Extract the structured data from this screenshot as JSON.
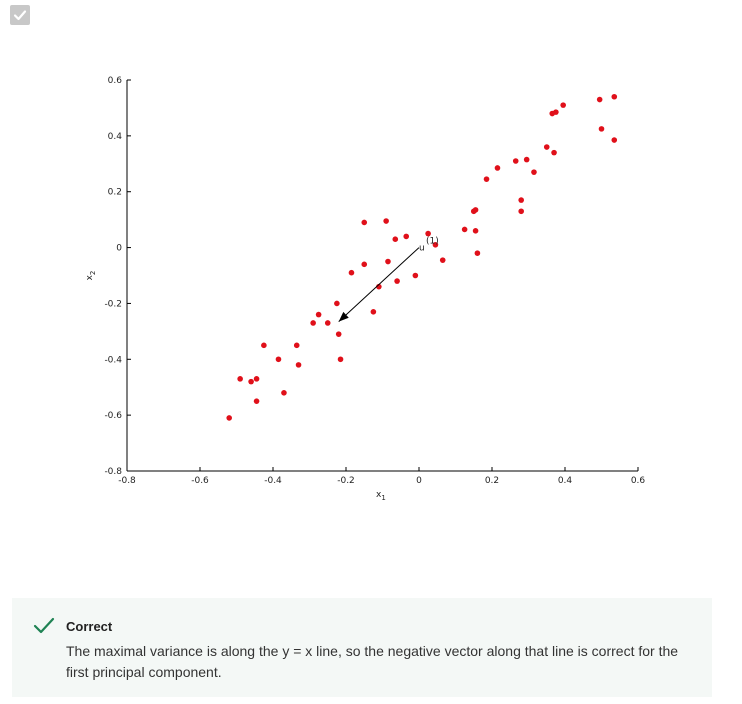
{
  "checkbox": {
    "checked": true,
    "icon": "checkmark-icon"
  },
  "chart_data": {
    "type": "scatter",
    "xlabel": "x1",
    "ylabel": "x2",
    "xlim": [
      -0.8,
      0.6
    ],
    "ylim": [
      -0.8,
      0.6
    ],
    "xticks": [
      "-0.8",
      "-0.6",
      "-0.4",
      "-0.2",
      "0",
      "0.2",
      "0.4",
      "0.6"
    ],
    "yticks": [
      "-0.8",
      "-0.6",
      "-0.4",
      "-0.2",
      "0",
      "0.2",
      "0.4",
      "0.6"
    ],
    "grid": false,
    "point_color": "#e0101a",
    "points": [
      [
        -0.52,
        -0.61
      ],
      [
        -0.49,
        -0.47
      ],
      [
        -0.46,
        -0.48
      ],
      [
        -0.445,
        -0.47
      ],
      [
        -0.445,
        -0.55
      ],
      [
        -0.425,
        -0.35
      ],
      [
        -0.385,
        -0.4
      ],
      [
        -0.37,
        -0.52
      ],
      [
        -0.335,
        -0.35
      ],
      [
        -0.33,
        -0.42
      ],
      [
        -0.29,
        -0.27
      ],
      [
        -0.275,
        -0.24
      ],
      [
        -0.25,
        -0.27
      ],
      [
        -0.225,
        -0.2
      ],
      [
        -0.22,
        -0.31
      ],
      [
        -0.215,
        -0.4
      ],
      [
        -0.185,
        -0.09
      ],
      [
        -0.15,
        -0.06
      ],
      [
        -0.15,
        0.09
      ],
      [
        -0.125,
        -0.23
      ],
      [
        -0.11,
        -0.14
      ],
      [
        -0.09,
        0.095
      ],
      [
        -0.085,
        -0.05
      ],
      [
        -0.065,
        0.03
      ],
      [
        -0.06,
        -0.12
      ],
      [
        -0.035,
        0.04
      ],
      [
        -0.01,
        -0.1
      ],
      [
        0.025,
        0.05
      ],
      [
        0.045,
        0.01
      ],
      [
        0.065,
        -0.045
      ],
      [
        0.125,
        0.065
      ],
      [
        0.15,
        0.13
      ],
      [
        0.155,
        0.135
      ],
      [
        0.155,
        0.06
      ],
      [
        0.16,
        -0.02
      ],
      [
        0.185,
        0.245
      ],
      [
        0.215,
        0.285
      ],
      [
        0.265,
        0.31
      ],
      [
        0.28,
        0.17
      ],
      [
        0.28,
        0.13
      ],
      [
        0.295,
        0.315
      ],
      [
        0.315,
        0.27
      ],
      [
        0.35,
        0.36
      ],
      [
        0.365,
        0.48
      ],
      [
        0.37,
        0.34
      ],
      [
        0.375,
        0.485
      ],
      [
        0.395,
        0.51
      ],
      [
        0.495,
        0.53
      ],
      [
        0.5,
        0.425
      ],
      [
        0.535,
        0.385
      ],
      [
        0.535,
        0.54
      ]
    ],
    "vector": {
      "from": [
        0,
        0
      ],
      "to": [
        -0.22,
        -0.265
      ],
      "label": "u",
      "label_superscript": "(1)"
    }
  },
  "feedback": {
    "title": "Correct",
    "message": "The maximal variance is along the y = x line, so the negative vector along that line is correct for the first principal component.",
    "accent_color": "#1f8354",
    "background_color": "#f4f8f6"
  }
}
